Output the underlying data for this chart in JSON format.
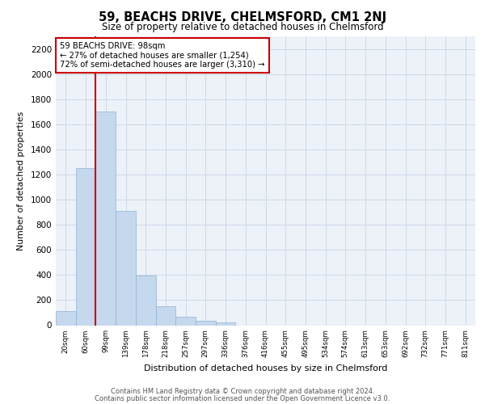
{
  "title": "59, BEACHS DRIVE, CHELMSFORD, CM1 2NJ",
  "subtitle": "Size of property relative to detached houses in Chelmsford",
  "xlabel": "Distribution of detached houses by size in Chelmsford",
  "ylabel": "Number of detached properties",
  "bar_labels": [
    "20sqm",
    "60sqm",
    "99sqm",
    "139sqm",
    "178sqm",
    "218sqm",
    "257sqm",
    "297sqm",
    "336sqm",
    "376sqm",
    "416sqm",
    "455sqm",
    "495sqm",
    "534sqm",
    "574sqm",
    "613sqm",
    "653sqm",
    "692sqm",
    "732sqm",
    "771sqm",
    "811sqm"
  ],
  "bar_values": [
    110,
    1254,
    1700,
    910,
    395,
    150,
    65,
    35,
    25,
    0,
    0,
    0,
    0,
    0,
    0,
    0,
    0,
    0,
    0,
    0,
    0
  ],
  "bar_color": "#c5d8ed",
  "bar_edge_color": "#8fb4d4",
  "vline_color": "#cc0000",
  "annotation_text": "59 BEACHS DRIVE: 98sqm\n← 27% of detached houses are smaller (1,254)\n72% of semi-detached houses are larger (3,310) →",
  "annotation_box_color": "#cc0000",
  "ylim": [
    0,
    2300
  ],
  "yticks": [
    0,
    200,
    400,
    600,
    800,
    1000,
    1200,
    1400,
    1600,
    1800,
    2000,
    2200
  ],
  "footer_line1": "Contains HM Land Registry data © Crown copyright and database right 2024.",
  "footer_line2": "Contains public sector information licensed under the Open Government Licence v3.0.",
  "background_color": "#edf2f9",
  "grid_color": "#c8d4e4"
}
